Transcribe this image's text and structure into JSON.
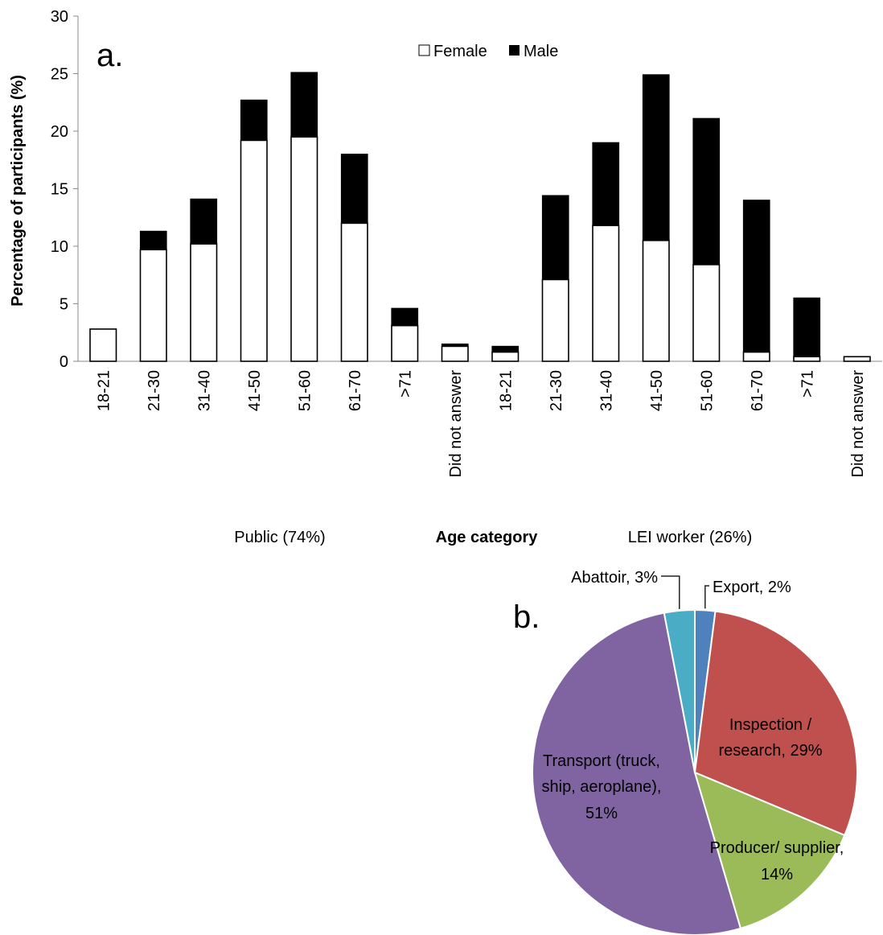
{
  "chart_data": [
    {
      "panel_label": "a.",
      "type": "bar",
      "stacked": true,
      "ylabel": "Percentage of participants (%)",
      "xlabel": "Age category",
      "ylim": [
        0,
        30
      ],
      "yticks": [
        0,
        5,
        10,
        15,
        20,
        25,
        30
      ],
      "grid": false,
      "legend_position": "top-center",
      "categories": [
        "18-21",
        "21-30",
        "31-40",
        "41-50",
        "51-60",
        "61-70",
        ">71",
        "Did not answer",
        "18-21",
        "21-30",
        "31-40",
        "41-50",
        "51-60",
        "61-70",
        ">71",
        "Did not answer"
      ],
      "groups": [
        {
          "label": "Public (74%)",
          "start": 0,
          "end": 7
        },
        {
          "label": "LEI worker (26%)",
          "start": 8,
          "end": 15
        }
      ],
      "series": [
        {
          "name": "Female",
          "color": "#ffffff",
          "values": [
            2.8,
            9.7,
            10.2,
            19.2,
            19.5,
            12.0,
            3.1,
            1.3,
            0.8,
            7.1,
            11.8,
            10.5,
            8.4,
            0.8,
            0.4,
            0.4
          ]
        },
        {
          "name": "Male",
          "color": "#000000",
          "values": [
            0.0,
            1.6,
            3.9,
            3.5,
            5.6,
            6.0,
            1.5,
            0.2,
            0.5,
            7.3,
            7.2,
            14.4,
            12.7,
            13.2,
            5.1,
            0.0
          ]
        }
      ]
    },
    {
      "panel_label": "b.",
      "type": "pie",
      "slices": [
        {
          "label": "Export, 2%",
          "value": 2,
          "color": "#4f81bd"
        },
        {
          "label": "Inspection / research, 29%",
          "value": 29,
          "color": "#c0504d"
        },
        {
          "label": "Producer/ supplier, 14%",
          "value": 14,
          "color": "#9bbb59"
        },
        {
          "label": "Transport (truck, ship, aeroplane), 51%",
          "value": 51,
          "color": "#8064a2"
        },
        {
          "label": "Abattoir, 3%",
          "value": 3,
          "color": "#4bacc6"
        }
      ]
    }
  ]
}
